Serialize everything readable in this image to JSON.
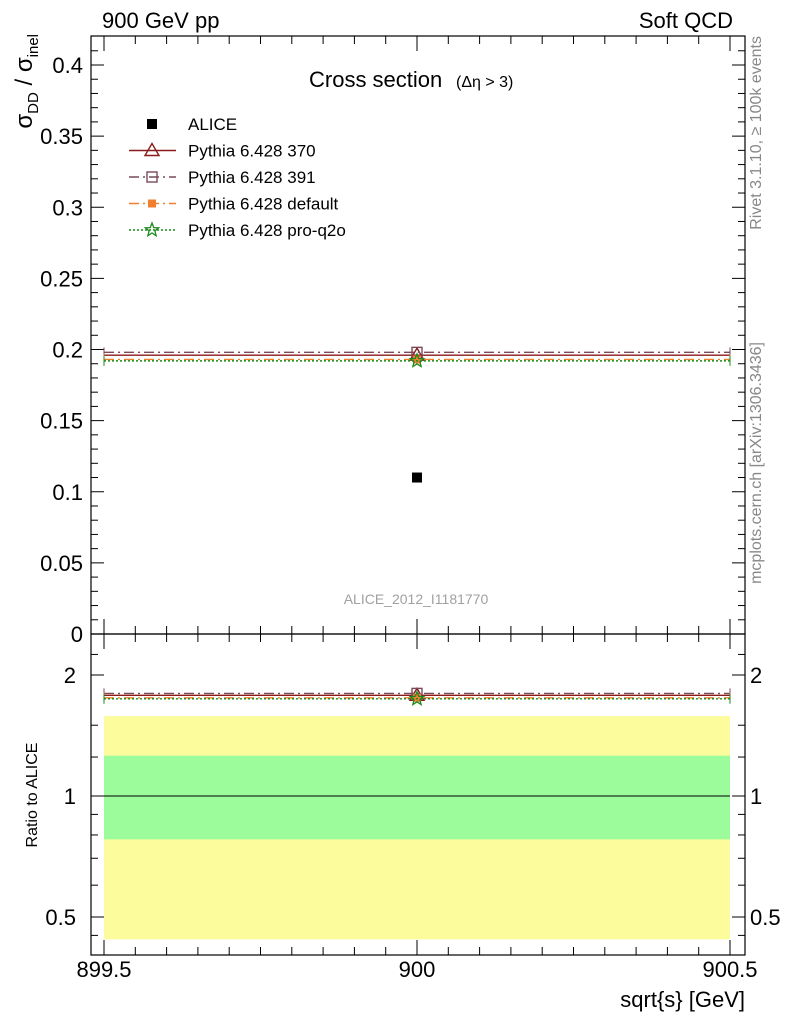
{
  "header": {
    "left": "900 GeV pp",
    "right": "Soft QCD"
  },
  "side_text": {
    "upper": "Rivet 3.1.10, ≥ 100k events",
    "lower": "mcplots.cern.ch [arXiv:1306.3436]"
  },
  "chart_data": {
    "type": "scatter",
    "title_main": "Cross section",
    "title_sub": "(Δη > 3)",
    "ylabel": {
      "sigma": "σ",
      "num_sub": "DD",
      "slash": " / ",
      "den_sub": "inel"
    },
    "xlabel": "sqrt{s} [GeV]",
    "watermark": "ALICE_2012_I1181770",
    "xlim": [
      899.5,
      900.5
    ],
    "ylim": [
      0,
      0.42
    ],
    "x_ticks": [
      899.5,
      900,
      900.5
    ],
    "x_tick_labels": [
      "899.5",
      "900",
      "900.5"
    ],
    "y_ticks": [
      0,
      0.05,
      0.1,
      0.15,
      0.2,
      0.25,
      0.3,
      0.35,
      0.4
    ],
    "y_tick_labels": [
      "0",
      "0.05",
      "0.1",
      "0.15",
      "0.2",
      "0.25",
      "0.3",
      "0.35",
      "0.4"
    ],
    "x": [
      900
    ],
    "series": [
      {
        "name": "ALICE",
        "values": [
          0.11
        ],
        "color": "#000000",
        "marker": "square-filled",
        "line": "none"
      },
      {
        "name": "Pythia 6.428 370",
        "values": [
          0.196
        ],
        "color": "#8b1a1a",
        "marker": "triangle-open",
        "line": "solid"
      },
      {
        "name": "Pythia 6.428 391",
        "values": [
          0.198
        ],
        "color": "#7a4a5a",
        "marker": "square-open",
        "line": "dashdot"
      },
      {
        "name": "Pythia 6.428 default",
        "values": [
          0.193
        ],
        "color": "#f08030",
        "marker": "square-filled-small",
        "line": "dashdot"
      },
      {
        "name": "Pythia 6.428 pro-q2o",
        "values": [
          0.192
        ],
        "color": "#1a8a1a",
        "marker": "star-open",
        "line": "dotted"
      }
    ],
    "ratio": {
      "ylabel": "Ratio to ALICE",
      "ylim": [
        0.42,
        2.45
      ],
      "log": true,
      "ticks": [
        0.5,
        1,
        2
      ],
      "tick_labels": [
        "0.5",
        "1",
        "2"
      ],
      "band_inner": [
        0.78,
        1.26
      ],
      "band_outer": [
        0.44,
        1.58
      ],
      "band_inner_color": "#9cfc9c",
      "band_outer_color": "#fcfc9c",
      "values": {
        "Pythia 6.428 370": 1.78,
        "Pythia 6.428 391": 1.8,
        "Pythia 6.428 default": 1.755,
        "Pythia 6.428 pro-q2o": 1.745
      }
    }
  }
}
